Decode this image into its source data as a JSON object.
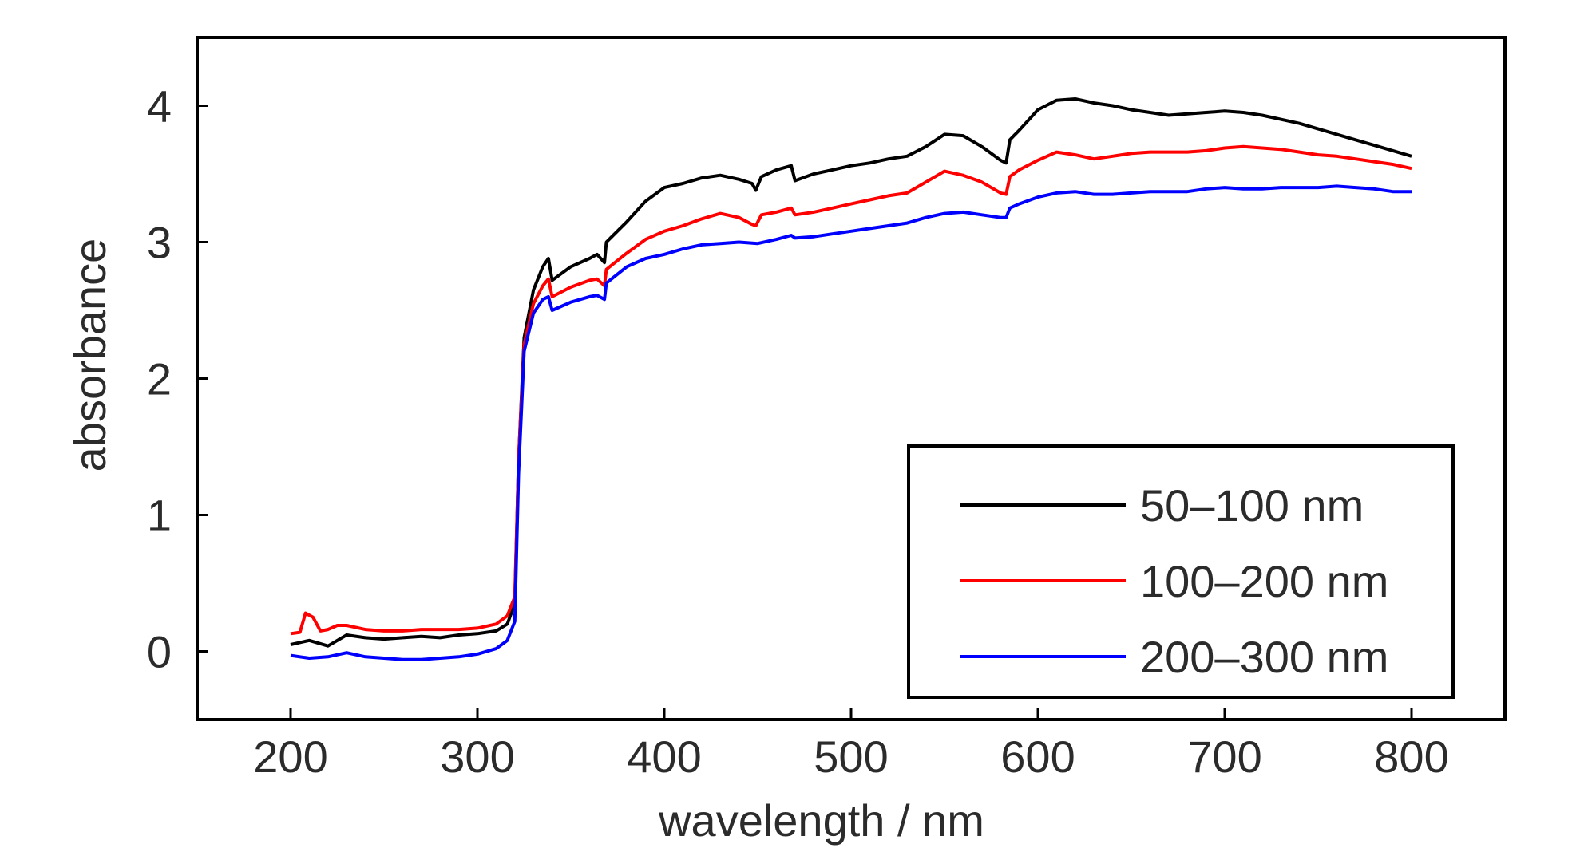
{
  "chart_data": {
    "type": "line",
    "xlabel": "wavelength / nm",
    "ylabel": "absorbance",
    "xlim": [
      150,
      850
    ],
    "ylim": [
      -0.5,
      4.5
    ],
    "xticks": [
      200,
      300,
      400,
      500,
      600,
      700,
      800
    ],
    "yticks": [
      0,
      1,
      2,
      3,
      4
    ],
    "grid": false,
    "legend_position": "bottom-right",
    "series": [
      {
        "name": "50–100 nm",
        "color": "#000000",
        "points": [
          [
            200,
            0.05
          ],
          [
            210,
            0.08
          ],
          [
            220,
            0.04
          ],
          [
            230,
            0.12
          ],
          [
            240,
            0.1
          ],
          [
            250,
            0.09
          ],
          [
            260,
            0.1
          ],
          [
            270,
            0.11
          ],
          [
            280,
            0.1
          ],
          [
            290,
            0.12
          ],
          [
            300,
            0.13
          ],
          [
            310,
            0.15
          ],
          [
            316,
            0.2
          ],
          [
            320,
            0.35
          ],
          [
            322,
            1.4
          ],
          [
            325,
            2.3
          ],
          [
            330,
            2.65
          ],
          [
            335,
            2.82
          ],
          [
            338,
            2.88
          ],
          [
            340,
            2.72
          ],
          [
            350,
            2.82
          ],
          [
            360,
            2.88
          ],
          [
            364,
            2.91
          ],
          [
            368,
            2.85
          ],
          [
            369,
            3.0
          ],
          [
            380,
            3.15
          ],
          [
            390,
            3.3
          ],
          [
            400,
            3.4
          ],
          [
            410,
            3.43
          ],
          [
            420,
            3.47
          ],
          [
            430,
            3.49
          ],
          [
            440,
            3.46
          ],
          [
            447,
            3.43
          ],
          [
            449,
            3.38
          ],
          [
            452,
            3.48
          ],
          [
            460,
            3.53
          ],
          [
            468,
            3.56
          ],
          [
            470,
            3.45
          ],
          [
            480,
            3.5
          ],
          [
            490,
            3.53
          ],
          [
            500,
            3.56
          ],
          [
            510,
            3.58
          ],
          [
            520,
            3.61
          ],
          [
            530,
            3.63
          ],
          [
            540,
            3.7
          ],
          [
            550,
            3.79
          ],
          [
            560,
            3.78
          ],
          [
            570,
            3.7
          ],
          [
            580,
            3.6
          ],
          [
            583,
            3.58
          ],
          [
            585,
            3.75
          ],
          [
            590,
            3.82
          ],
          [
            600,
            3.97
          ],
          [
            610,
            4.04
          ],
          [
            620,
            4.05
          ],
          [
            630,
            4.02
          ],
          [
            640,
            4.0
          ],
          [
            650,
            3.97
          ],
          [
            660,
            3.95
          ],
          [
            670,
            3.93
          ],
          [
            680,
            3.94
          ],
          [
            690,
            3.95
          ],
          [
            700,
            3.96
          ],
          [
            710,
            3.95
          ],
          [
            720,
            3.93
          ],
          [
            730,
            3.9
          ],
          [
            740,
            3.87
          ],
          [
            750,
            3.83
          ],
          [
            760,
            3.79
          ],
          [
            770,
            3.75
          ],
          [
            780,
            3.71
          ],
          [
            790,
            3.67
          ],
          [
            800,
            3.63
          ]
        ]
      },
      {
        "name": "100–200 nm",
        "color": "#ff0000",
        "points": [
          [
            200,
            0.13
          ],
          [
            205,
            0.14
          ],
          [
            208,
            0.28
          ],
          [
            212,
            0.25
          ],
          [
            216,
            0.15
          ],
          [
            220,
            0.16
          ],
          [
            225,
            0.19
          ],
          [
            230,
            0.19
          ],
          [
            240,
            0.16
          ],
          [
            250,
            0.15
          ],
          [
            260,
            0.15
          ],
          [
            270,
            0.16
          ],
          [
            280,
            0.16
          ],
          [
            290,
            0.16
          ],
          [
            300,
            0.17
          ],
          [
            310,
            0.2
          ],
          [
            316,
            0.26
          ],
          [
            320,
            0.4
          ],
          [
            322,
            1.4
          ],
          [
            325,
            2.25
          ],
          [
            330,
            2.55
          ],
          [
            335,
            2.68
          ],
          [
            338,
            2.73
          ],
          [
            340,
            2.6
          ],
          [
            350,
            2.67
          ],
          [
            360,
            2.72
          ],
          [
            364,
            2.73
          ],
          [
            368,
            2.68
          ],
          [
            369,
            2.8
          ],
          [
            380,
            2.92
          ],
          [
            390,
            3.02
          ],
          [
            400,
            3.08
          ],
          [
            410,
            3.12
          ],
          [
            420,
            3.17
          ],
          [
            430,
            3.21
          ],
          [
            440,
            3.18
          ],
          [
            447,
            3.13
          ],
          [
            449,
            3.12
          ],
          [
            452,
            3.2
          ],
          [
            460,
            3.22
          ],
          [
            468,
            3.25
          ],
          [
            470,
            3.2
          ],
          [
            480,
            3.22
          ],
          [
            490,
            3.25
          ],
          [
            500,
            3.28
          ],
          [
            510,
            3.31
          ],
          [
            520,
            3.34
          ],
          [
            530,
            3.36
          ],
          [
            540,
            3.44
          ],
          [
            550,
            3.52
          ],
          [
            560,
            3.49
          ],
          [
            570,
            3.44
          ],
          [
            580,
            3.36
          ],
          [
            583,
            3.35
          ],
          [
            585,
            3.48
          ],
          [
            590,
            3.53
          ],
          [
            600,
            3.6
          ],
          [
            610,
            3.66
          ],
          [
            620,
            3.64
          ],
          [
            630,
            3.61
          ],
          [
            640,
            3.63
          ],
          [
            650,
            3.65
          ],
          [
            660,
            3.66
          ],
          [
            670,
            3.66
          ],
          [
            680,
            3.66
          ],
          [
            690,
            3.67
          ],
          [
            700,
            3.69
          ],
          [
            710,
            3.7
          ],
          [
            720,
            3.69
          ],
          [
            730,
            3.68
          ],
          [
            740,
            3.66
          ],
          [
            750,
            3.64
          ],
          [
            760,
            3.63
          ],
          [
            770,
            3.61
          ],
          [
            780,
            3.59
          ],
          [
            790,
            3.57
          ],
          [
            800,
            3.54
          ]
        ]
      },
      {
        "name": "200–300 nm",
        "color": "#0000ff",
        "points": [
          [
            200,
            -0.03
          ],
          [
            210,
            -0.05
          ],
          [
            220,
            -0.04
          ],
          [
            230,
            -0.01
          ],
          [
            240,
            -0.04
          ],
          [
            250,
            -0.05
          ],
          [
            260,
            -0.06
          ],
          [
            270,
            -0.06
          ],
          [
            280,
            -0.05
          ],
          [
            290,
            -0.04
          ],
          [
            300,
            -0.02
          ],
          [
            310,
            0.02
          ],
          [
            316,
            0.08
          ],
          [
            320,
            0.22
          ],
          [
            322,
            1.3
          ],
          [
            325,
            2.2
          ],
          [
            330,
            2.48
          ],
          [
            335,
            2.58
          ],
          [
            338,
            2.6
          ],
          [
            340,
            2.5
          ],
          [
            350,
            2.56
          ],
          [
            360,
            2.6
          ],
          [
            364,
            2.61
          ],
          [
            368,
            2.58
          ],
          [
            369,
            2.7
          ],
          [
            380,
            2.82
          ],
          [
            390,
            2.88
          ],
          [
            400,
            2.91
          ],
          [
            410,
            2.95
          ],
          [
            420,
            2.98
          ],
          [
            430,
            2.99
          ],
          [
            440,
            3.0
          ],
          [
            450,
            2.99
          ],
          [
            460,
            3.02
          ],
          [
            468,
            3.05
          ],
          [
            470,
            3.03
          ],
          [
            480,
            3.04
          ],
          [
            490,
            3.06
          ],
          [
            500,
            3.08
          ],
          [
            510,
            3.1
          ],
          [
            520,
            3.12
          ],
          [
            530,
            3.14
          ],
          [
            540,
            3.18
          ],
          [
            550,
            3.21
          ],
          [
            560,
            3.22
          ],
          [
            570,
            3.2
          ],
          [
            580,
            3.18
          ],
          [
            583,
            3.18
          ],
          [
            585,
            3.25
          ],
          [
            590,
            3.28
          ],
          [
            600,
            3.33
          ],
          [
            610,
            3.36
          ],
          [
            620,
            3.37
          ],
          [
            630,
            3.35
          ],
          [
            640,
            3.35
          ],
          [
            650,
            3.36
          ],
          [
            660,
            3.37
          ],
          [
            670,
            3.37
          ],
          [
            680,
            3.37
          ],
          [
            690,
            3.39
          ],
          [
            700,
            3.4
          ],
          [
            710,
            3.39
          ],
          [
            720,
            3.39
          ],
          [
            730,
            3.4
          ],
          [
            740,
            3.4
          ],
          [
            750,
            3.4
          ],
          [
            760,
            3.41
          ],
          [
            770,
            3.4
          ],
          [
            780,
            3.39
          ],
          [
            790,
            3.37
          ],
          [
            800,
            3.37
          ]
        ]
      }
    ]
  }
}
